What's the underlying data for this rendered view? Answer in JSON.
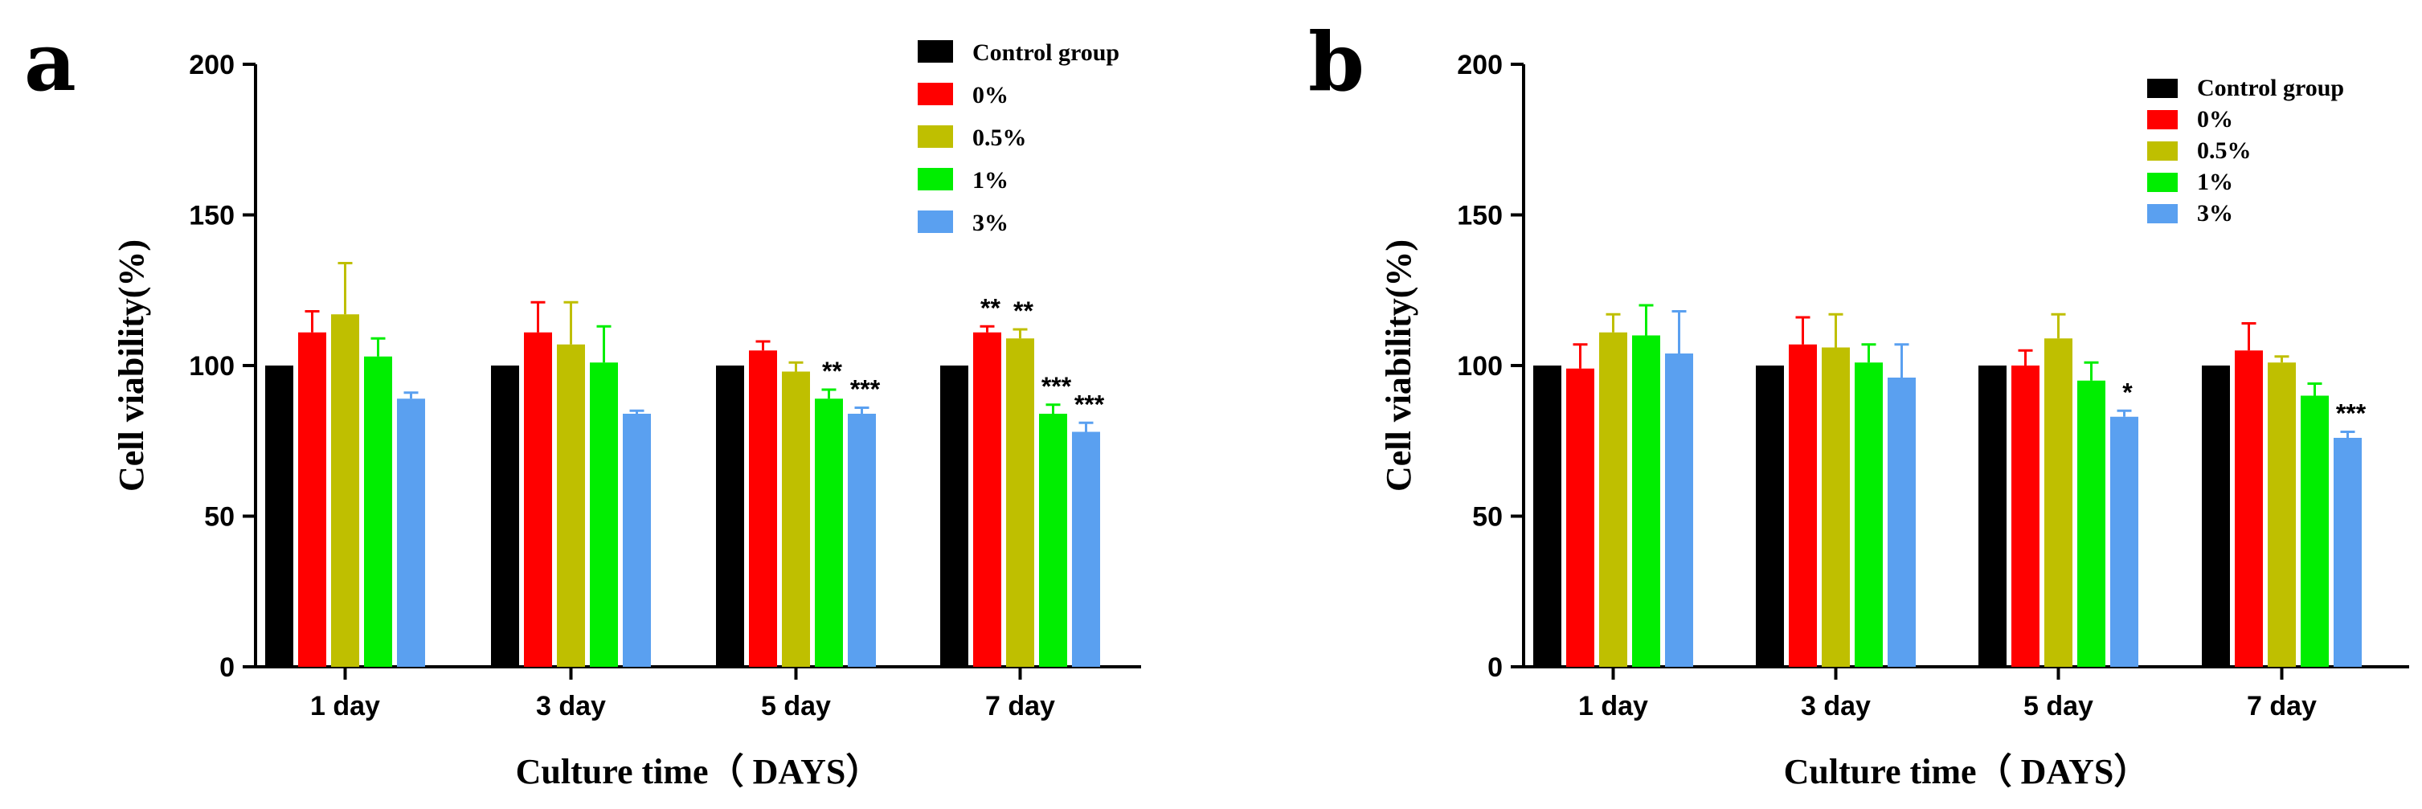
{
  "chart_data": [
    {
      "panel": "a",
      "type": "bar",
      "xlabel": "Culture time（ DAYS）",
      "ylabel": "Cell  viability(%)",
      "ylim": [
        0,
        200
      ],
      "yticks": [
        "0",
        "50",
        "100",
        "150",
        "200"
      ],
      "categories": [
        "1 day",
        "3 day",
        "5 day",
        "7 day"
      ],
      "legend_position": "top-right",
      "series": [
        {
          "name": "Control group",
          "color": "#000000",
          "values": [
            100,
            100,
            100,
            100
          ],
          "errors": [
            0,
            0,
            0,
            0
          ],
          "sig": [
            "",
            "",
            "",
            ""
          ]
        },
        {
          "name": "0%",
          "color": "#ff0000",
          "values": [
            111,
            111,
            105,
            111
          ],
          "errors": [
            7,
            10,
            3,
            2
          ],
          "sig": [
            "",
            "",
            "",
            "**"
          ]
        },
        {
          "name": "0.5%",
          "color": "#bfbf00",
          "values": [
            117,
            107,
            98,
            109
          ],
          "errors": [
            17,
            14,
            3,
            3
          ],
          "sig": [
            "",
            "",
            "",
            "**"
          ]
        },
        {
          "name": "1%",
          "color": "#00ee00",
          "values": [
            103,
            101,
            89,
            84
          ],
          "errors": [
            6,
            12,
            3,
            3
          ],
          "sig": [
            "",
            "",
            "**",
            "***"
          ]
        },
        {
          "name": "3%",
          "color": "#5aa0f0",
          "values": [
            89,
            84,
            84,
            78
          ],
          "errors": [
            2,
            1,
            2,
            3
          ],
          "sig": [
            "",
            "",
            "***",
            "***"
          ]
        }
      ]
    },
    {
      "panel": "b",
      "type": "bar",
      "xlabel": "Culture time（ DAYS）",
      "ylabel": "Cell  viability(%)",
      "ylim": [
        0,
        200
      ],
      "yticks": [
        "0",
        "50",
        "100",
        "150",
        "200"
      ],
      "categories": [
        "1 day",
        "3 day",
        "5 day",
        "7 day"
      ],
      "legend_position": "top-right",
      "series": [
        {
          "name": "Control group",
          "color": "#000000",
          "values": [
            100,
            100,
            100,
            100
          ],
          "errors": [
            0,
            0,
            0,
            0
          ],
          "sig": [
            "",
            "",
            "",
            ""
          ]
        },
        {
          "name": "0%",
          "color": "#ff0000",
          "values": [
            99,
            107,
            100,
            105
          ],
          "errors": [
            8,
            9,
            5,
            9
          ],
          "sig": [
            "",
            "",
            "",
            ""
          ]
        },
        {
          "name": "0.5%",
          "color": "#bfbf00",
          "values": [
            111,
            106,
            109,
            101
          ],
          "errors": [
            6,
            11,
            8,
            2
          ],
          "sig": [
            "",
            "",
            "",
            ""
          ]
        },
        {
          "name": "1%",
          "color": "#00ee00",
          "values": [
            110,
            101,
            95,
            90
          ],
          "errors": [
            10,
            6,
            6,
            4
          ],
          "sig": [
            "",
            "",
            "",
            ""
          ]
        },
        {
          "name": "3%",
          "color": "#5aa0f0",
          "values": [
            104,
            96,
            83,
            76
          ],
          "errors": [
            14,
            11,
            2,
            2
          ],
          "sig": [
            "",
            "",
            "*",
            "***"
          ]
        }
      ]
    }
  ]
}
